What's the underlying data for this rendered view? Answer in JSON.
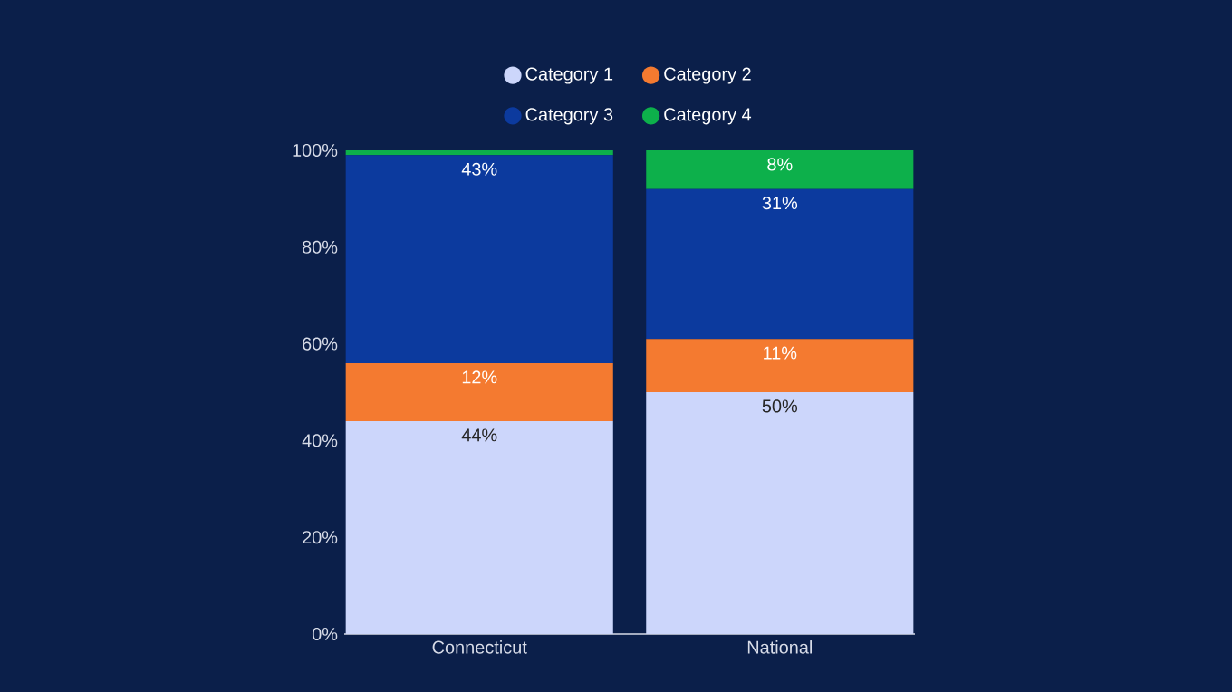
{
  "chart_data": {
    "type": "bar",
    "stacked": true,
    "categories": [
      "Connecticut",
      "National"
    ],
    "series": [
      {
        "name": "Category 1",
        "color": "#ccd6fb",
        "values": [
          44,
          50
        ],
        "value_labels": [
          "44%",
          "50%"
        ]
      },
      {
        "name": "Category 2",
        "color": "#f47a30",
        "values": [
          12,
          11
        ],
        "value_labels": [
          "12%",
          "11%"
        ]
      },
      {
        "name": "Category 3",
        "color": "#0c3a9e",
        "values": [
          43,
          31
        ],
        "value_labels": [
          "43%",
          "31%"
        ]
      },
      {
        "name": "Category 4",
        "color": "#0db04b",
        "values": [
          1,
          8
        ],
        "value_labels": [
          null,
          "8%"
        ]
      }
    ],
    "ylim": [
      0,
      100
    ],
    "yticks": [
      {
        "value": 0,
        "label": "0%"
      },
      {
        "value": 20,
        "label": "20%"
      },
      {
        "value": 40,
        "label": "40%"
      },
      {
        "value": 60,
        "label": "60%"
      },
      {
        "value": 80,
        "label": "80%"
      },
      {
        "value": 100,
        "label": "100%"
      }
    ],
    "legend": "top",
    "grid": false
  }
}
